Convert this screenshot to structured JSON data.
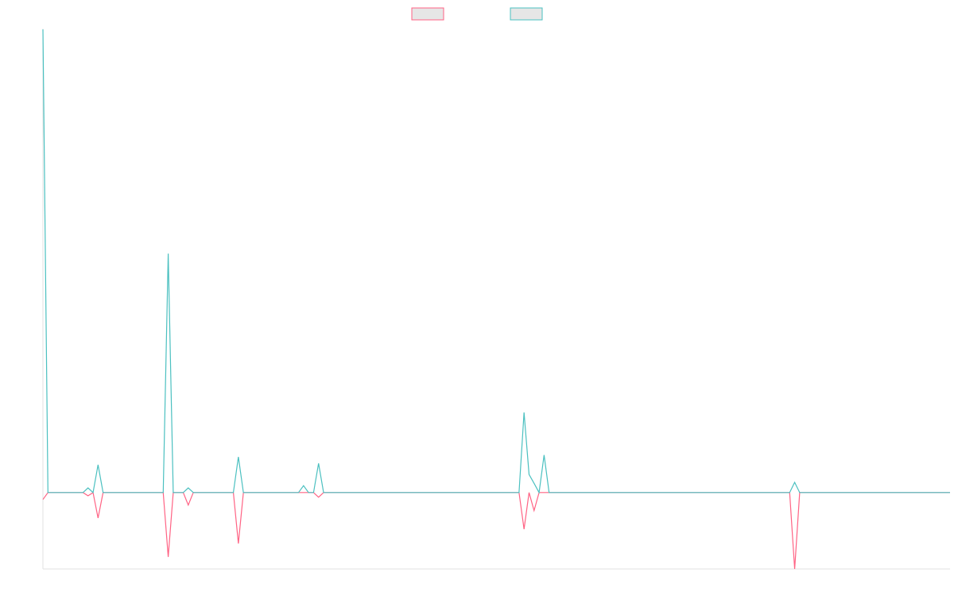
{
  "chart_data": {
    "type": "line",
    "x": [
      0,
      1,
      8,
      9,
      10,
      11,
      12,
      24,
      25,
      26,
      28,
      29,
      30,
      38,
      39,
      40,
      51,
      52,
      53,
      54,
      55,
      56,
      95,
      96,
      97,
      98,
      99,
      100,
      101,
      149,
      150,
      151,
      181
    ],
    "xlim": [
      0,
      181
    ],
    "ylim": [
      -16.5,
      100
    ],
    "legend": "top",
    "series": [
      {
        "color": "#ff6384",
        "values": [
          -1.5,
          0,
          0,
          -0.7,
          0,
          -5.5,
          0,
          0,
          -13.9,
          0,
          0,
          -2.7,
          0,
          0,
          -11,
          0,
          0,
          0,
          0,
          0,
          -1,
          0,
          0,
          -7.9,
          0,
          -3.9,
          0,
          0,
          0,
          0,
          -16.5,
          0,
          0
        ]
      },
      {
        "color": "#4bc0c0",
        "values": [
          100,
          0,
          0,
          1,
          0,
          6,
          0,
          0,
          51.6,
          0,
          0,
          1,
          0,
          0,
          7.7,
          0,
          0,
          1.5,
          0,
          0,
          6.3,
          0,
          0,
          17.3,
          3.9,
          2,
          0,
          8.1,
          0,
          0,
          2.2,
          0,
          0
        ]
      }
    ]
  }
}
